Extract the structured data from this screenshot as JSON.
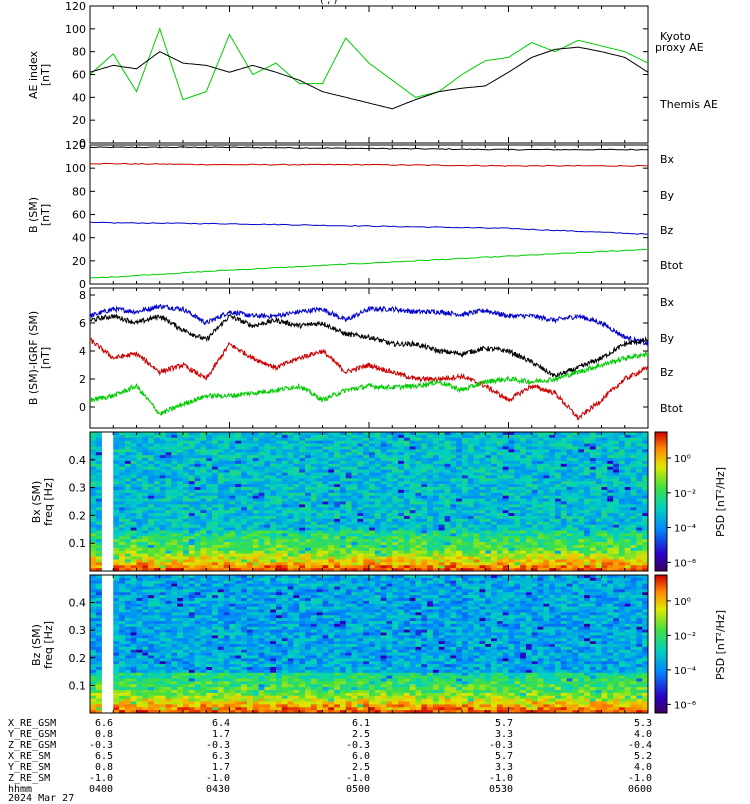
{
  "header": {
    "title_fragment": "(  ,  )"
  },
  "panels": {
    "ae": {
      "ylabel": "AE index",
      "yunit": "[nT]",
      "legend": [
        {
          "text": "Kyoto",
          "color": "#00dd00"
        },
        {
          "text": "proxy AE",
          "color": "#00dd00"
        },
        {
          "text": "Themis AE",
          "color": "#000000"
        }
      ],
      "yticks": [
        "120",
        "100",
        "80",
        "60",
        "40",
        "20",
        "0"
      ]
    },
    "bsm": {
      "ylabel": "B (SM)",
      "yunit": "[nT]",
      "legend": [
        {
          "text": "Bx",
          "color": "#0000cc"
        },
        {
          "text": "By",
          "color": "#00cc00"
        },
        {
          "text": "Bz",
          "color": "#cc0000"
        },
        {
          "text": "Btot",
          "color": "#000000"
        }
      ],
      "yticks": [
        "120",
        "100",
        "80",
        "60",
        "40",
        "20",
        "0"
      ]
    },
    "dbsm": {
      "ylabel": "B (SM)-IGRF (SM)",
      "yunit": "[nT]",
      "legend": [
        {
          "text": "Bx",
          "color": "#0000cc"
        },
        {
          "text": "By",
          "color": "#00cc00"
        },
        {
          "text": "Bz",
          "color": "#cc0000"
        },
        {
          "text": "Btot",
          "color": "#000000"
        }
      ],
      "yticks": [
        "8",
        "6",
        "4",
        "2",
        "0"
      ]
    },
    "spec_bx": {
      "ylabel1": "Bx (SM)",
      "ylabel2": "freq [Hz]",
      "yticks": [
        "0.4",
        "0.3",
        "0.2",
        "0.1"
      ],
      "cbar_label": "PSD [nT²/Hz]",
      "cbar_ticks": [
        "10⁰",
        "10⁻²",
        "10⁻⁴",
        "10⁻⁶"
      ]
    },
    "spec_bz": {
      "ylabel1": "Bz (SM)",
      "ylabel2": "freq [Hz]",
      "yticks": [
        "0.4",
        "0.3",
        "0.2",
        "0.1"
      ],
      "cbar_label": "PSD [nT²/Hz]",
      "cbar_ticks": [
        "10⁰",
        "10⁻²",
        "10⁻⁴",
        "10⁻⁶"
      ]
    }
  },
  "ephemeris": {
    "rows": [
      {
        "label": "X_RE_GSM",
        "values": [
          "6.6",
          "6.4",
          "6.1",
          "5.7",
          "5.3"
        ]
      },
      {
        "label": "Y_RE_GSM",
        "values": [
          "0.8",
          "1.7",
          "2.5",
          "3.3",
          "4.0"
        ]
      },
      {
        "label": "Z_RE_GSM",
        "values": [
          "-0.3",
          "-0.3",
          "-0.3",
          "-0.3",
          "-0.4"
        ]
      },
      {
        "label": "X_RE_SM",
        "values": [
          "6.5",
          "6.3",
          "6.0",
          "5.7",
          "5.2"
        ]
      },
      {
        "label": "Y_RE_SM",
        "values": [
          "0.8",
          "1.7",
          "2.5",
          "3.3",
          "4.0"
        ]
      },
      {
        "label": "Z_RE_SM",
        "values": [
          "-1.0",
          "-1.0",
          "-1.0",
          "-1.0",
          "-1.0"
        ]
      },
      {
        "label": "hhmm",
        "values": [
          "0400",
          "0430",
          "0500",
          "0530",
          "0600"
        ]
      }
    ],
    "date": "2024 Mar 27"
  },
  "chart_data": [
    {
      "type": "line",
      "panel": "ae",
      "x_range": [
        "0400",
        "0600"
      ],
      "ylim": [
        0,
        120
      ],
      "ylabel": "AE index [nT]",
      "x_minutes": [
        0,
        5,
        10,
        15,
        20,
        25,
        30,
        35,
        40,
        45,
        50,
        55,
        60,
        65,
        70,
        75,
        80,
        85,
        90,
        95,
        100,
        105,
        110,
        115,
        120
      ],
      "series": [
        {
          "name": "Kyoto proxy AE",
          "color": "#00cc00",
          "values": [
            60,
            78,
            45,
            100,
            38,
            45,
            95,
            60,
            70,
            52,
            52,
            92,
            70,
            55,
            40,
            45,
            60,
            72,
            75,
            88,
            80,
            90,
            85,
            80,
            70
          ]
        },
        {
          "name": "Themis AE",
          "color": "#000000",
          "values": [
            62,
            68,
            65,
            80,
            70,
            68,
            62,
            68,
            62,
            55,
            45,
            40,
            35,
            30,
            38,
            45,
            48,
            50,
            62,
            75,
            82,
            84,
            80,
            75,
            62
          ]
        }
      ]
    },
    {
      "type": "line",
      "panel": "bsm",
      "ylim": [
        0,
        120
      ],
      "ylabel": "B (SM) [nT]",
      "x_minutes": [
        0,
        30,
        60,
        90,
        120
      ],
      "series": [
        {
          "name": "Btot",
          "color": "#000000",
          "values": [
            118,
            118,
            117,
            116,
            116
          ]
        },
        {
          "name": "Bz",
          "color": "#cc0000",
          "values": [
            104,
            103,
            103,
            102,
            102
          ]
        },
        {
          "name": "Bx",
          "color": "#0000cc",
          "values": [
            53,
            52,
            50,
            48,
            43
          ]
        },
        {
          "name": "By",
          "color": "#00cc00",
          "values": [
            5,
            12,
            18,
            24,
            30
          ]
        }
      ]
    },
    {
      "type": "line",
      "panel": "dbsm",
      "ylim": [
        -1.5,
        8.5
      ],
      "ylabel": "B (SM)-IGRF (SM) [nT]",
      "x_minutes": [
        0,
        5,
        10,
        15,
        20,
        25,
        30,
        35,
        40,
        45,
        50,
        55,
        60,
        65,
        70,
        75,
        80,
        85,
        90,
        95,
        100,
        105,
        110,
        115,
        120
      ],
      "series": [
        {
          "name": "Bx",
          "color": "#0000cc",
          "values": [
            6.5,
            7.0,
            6.8,
            7.2,
            7.0,
            6.0,
            6.8,
            6.5,
            6.5,
            6.8,
            7.0,
            6.2,
            7.0,
            7.0,
            6.8,
            6.8,
            6.6,
            6.9,
            6.5,
            6.5,
            6.2,
            6.5,
            6.0,
            5.0,
            4.5
          ]
        },
        {
          "name": "Btot",
          "color": "#000000",
          "values": [
            6.2,
            6.5,
            6.0,
            6.5,
            5.5,
            4.8,
            6.5,
            5.8,
            6.2,
            5.8,
            6.0,
            5.2,
            5.0,
            4.5,
            4.5,
            4.0,
            3.8,
            4.2,
            4.0,
            3.2,
            2.2,
            2.8,
            3.5,
            4.5,
            4.8
          ]
        },
        {
          "name": "Bz",
          "color": "#cc0000",
          "values": [
            4.8,
            3.5,
            3.8,
            2.5,
            3.0,
            2.0,
            4.5,
            3.5,
            2.8,
            3.5,
            4.0,
            2.5,
            3.0,
            2.5,
            2.0,
            2.0,
            2.2,
            1.5,
            0.5,
            1.5,
            1.0,
            -0.8,
            0.5,
            2.0,
            2.8
          ]
        },
        {
          "name": "By",
          "color": "#00cc00",
          "values": [
            0.5,
            0.8,
            1.5,
            -0.5,
            0.2,
            0.8,
            0.8,
            1.0,
            1.2,
            1.5,
            0.5,
            1.2,
            1.5,
            1.4,
            1.5,
            1.8,
            1.2,
            1.8,
            2.0,
            1.8,
            2.0,
            2.5,
            3.0,
            3.5,
            3.8
          ]
        }
      ]
    },
    {
      "type": "heatmap",
      "panel": "spec_bx",
      "ylabel": "Bx (SM) freq [Hz]",
      "ylim": [
        0,
        0.5
      ],
      "colorbar_label": "PSD [nT²/Hz]",
      "colorbar_range_log10": [
        -6.5,
        1.5
      ],
      "data_gap_minutes": [
        2.5,
        4.5
      ]
    },
    {
      "type": "heatmap",
      "panel": "spec_bz",
      "ylabel": "Bz (SM) freq [Hz]",
      "ylim": [
        0,
        0.5
      ],
      "colorbar_label": "PSD [nT²/Hz]",
      "colorbar_range_log10": [
        -6.5,
        1.5
      ],
      "data_gap_minutes": [
        2.5,
        4.5
      ]
    }
  ]
}
